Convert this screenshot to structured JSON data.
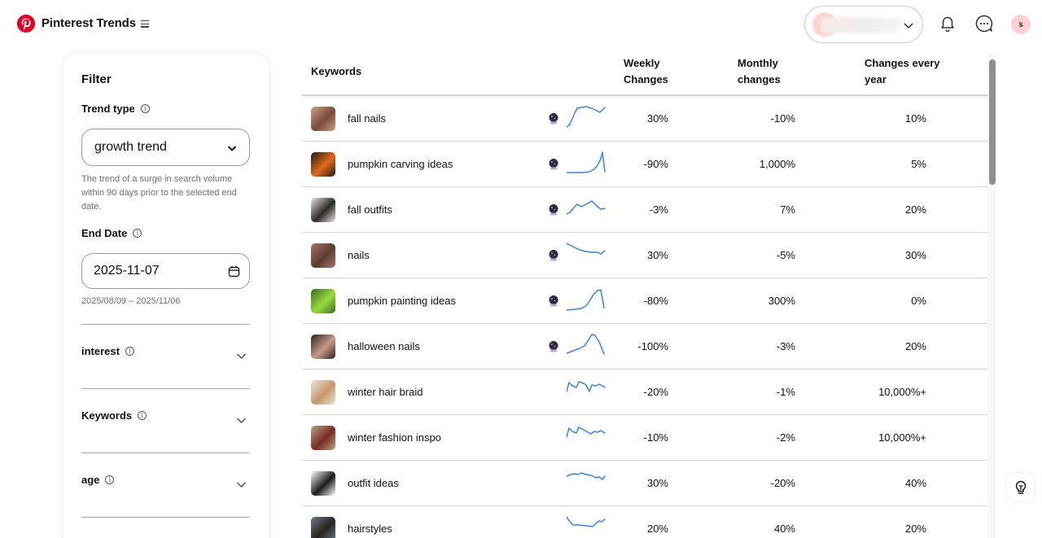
{
  "header": {
    "brand": "Pinterest Trends",
    "avatar_initial": "s",
    "icons": [
      "pinterest-logo",
      "menu-icon",
      "chevron-down-icon",
      "bell-icon",
      "chat-icon"
    ]
  },
  "filter": {
    "title": "Filter",
    "trend_type": {
      "label": "Trend type",
      "value": "growth trend",
      "help": "The trend of a surge in search volume within 90 days prior to the selected end date."
    },
    "end_date": {
      "label": "End Date",
      "value": "2025-11-07",
      "range": "2025/08/09 – 2025/11/06"
    },
    "accordions": [
      {
        "label": "interest"
      },
      {
        "label": "Keywords"
      },
      {
        "label": "age"
      }
    ]
  },
  "table": {
    "columns": {
      "keywords": "Keywords",
      "weekly_line1": "Weekly",
      "weekly_line2": "Changes",
      "monthly_line1": "Monthly",
      "monthly_line2": "changes",
      "yearly_line1": "Changes every",
      "yearly_line2": "year"
    },
    "rows": [
      {
        "keyword": "fall nails",
        "weekly": "30%",
        "monthly": "-10%",
        "yearly": "10%",
        "predicted": true,
        "thumb": [
          "#c9a08a",
          "#7a4a3a"
        ],
        "spark": "0,27 4,24 9,12 13,4 18,3 24,2 31,4 37,7 41,9 47,3"
      },
      {
        "keyword": "pumpkin carving ideas",
        "weekly": "-90%",
        "monthly": "1,000%",
        "yearly": "5%",
        "predicted": true,
        "thumb": [
          "#1f1c18",
          "#e06a1b"
        ],
        "spark": "0,27 10,27 20,27 28,26 34,23 38,18 42,10 44,2 47,26"
      },
      {
        "keyword": "fall outfits",
        "weekly": "-3%",
        "monthly": "7%",
        "yearly": "20%",
        "predicted": true,
        "thumb": [
          "#e8e6e2",
          "#2b2a28"
        ],
        "spark": "0,22 4,20 9,14 13,10 18,13 24,10 31,6 37,12 42,16 47,15"
      },
      {
        "keyword": "nails",
        "weekly": "30%",
        "monthly": "-5%",
        "yearly": "30%",
        "predicted": true,
        "thumb": [
          "#a8776a",
          "#5b3a32"
        ],
        "spark": "0,2 8,6 16,10 24,12 32,13 38,13 42,15 47,11"
      },
      {
        "keyword": "pumpkin painting ideas",
        "weekly": "-80%",
        "monthly": "300%",
        "yearly": "0%",
        "predicted": true,
        "thumb": [
          "#3b6a2a",
          "#9adb3a"
        ],
        "spark": "0,28 10,27 18,26 24,23 28,17 33,9 38,4 42,3 46,25"
      },
      {
        "keyword": "halloween nails",
        "weekly": "-100%",
        "monthly": "-3%",
        "yearly": "20%",
        "predicted": true,
        "thumb": [
          "#2a2220",
          "#c79a88"
        ],
        "spark": "0,25 8,22 16,19 22,16 26,10 31,2 35,3 40,11 46,26"
      },
      {
        "keyword": "winter hair braid",
        "weekly": "-20%",
        "monthly": "-1%",
        "yearly": "10,000%+",
        "predicted": false,
        "thumb": [
          "#ebe5dc",
          "#c9966a"
        ],
        "spark": "0,16 3,5 7,9 12,11 15,4 21,6 24,8 28,16 31,8 36,9 40,7 44,9 47,11"
      },
      {
        "keyword": "winter fashion inspo",
        "weekly": "-10%",
        "monthly": "-2%",
        "yearly": "10,000%+",
        "predicted": false,
        "thumb": [
          "#b8a488",
          "#7a2a22"
        ],
        "spark": "0,16 3,5 7,9 12,11 15,4 21,7 26,10 30,12 34,9 38,10 42,8 47,11"
      },
      {
        "keyword": "outfit ideas",
        "weekly": "30%",
        "monthly": "-20%",
        "yearly": "40%",
        "predicted": false,
        "thumb": [
          "#ffffff",
          "#1b1b1b"
        ],
        "spark": "0,8 5,6 10,5 14,6 18,4 24,6 30,7 36,10 40,9 44,12 47,8"
      },
      {
        "keyword": "hairstyles",
        "weekly": "20%",
        "monthly": "40%",
        "yearly": "20%",
        "predicted": false,
        "thumb": [
          "#6a7a86",
          "#2a2420"
        ],
        "spark": "0,2 4,8 8,12 16,12 24,13 32,14 36,10 40,7 43,8 47,5"
      }
    ]
  },
  "colors": {
    "brand_red": "#e60023",
    "sparkline": "#3b82e0",
    "avatar_bg": "#ffd1d1"
  }
}
